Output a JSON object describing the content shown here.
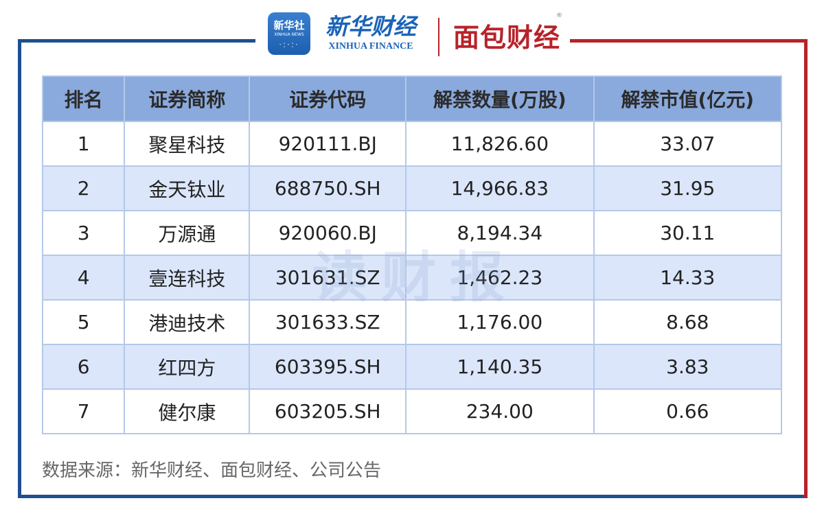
{
  "header": {
    "xinhua_app_logo": {
      "cn": "新华社",
      "en": "XINHUA NEWS"
    },
    "xinhua_finance_logo": {
      "cn": "新华财经",
      "en": "XINHUA FINANCE"
    },
    "mianbao_logo": {
      "text": "面包财经",
      "registered": "®"
    }
  },
  "colors": {
    "frame_blue": "#1d4f91",
    "frame_red": "#b8222a",
    "header_bg": "#8aa9dc",
    "alt_row_bg": "#dbe6fa"
  },
  "table": {
    "columns": [
      "排名",
      "证券简称",
      "证券代码",
      "解禁数量(万股)",
      "解禁市值(亿元)"
    ],
    "rows": [
      [
        "1",
        "聚星科技",
        "920111.BJ",
        "11,826.60",
        "33.07"
      ],
      [
        "2",
        "金天钛业",
        "688750.SH",
        "14,966.83",
        "31.95"
      ],
      [
        "3",
        "万源通",
        "920060.BJ",
        "8,194.34",
        "30.11"
      ],
      [
        "4",
        "壹连科技",
        "301631.SZ",
        "1,462.23",
        "14.33"
      ],
      [
        "5",
        "港迪技术",
        "301633.SZ",
        "1,176.00",
        "8.68"
      ],
      [
        "6",
        "红四方",
        "603395.SH",
        "1,140.35",
        "3.83"
      ],
      [
        "7",
        "健尔康",
        "603205.SH",
        "234.00",
        "0.66"
      ]
    ]
  },
  "watermark": "读财报",
  "source": "数据来源：新华财经、面包财经、公司公告"
}
